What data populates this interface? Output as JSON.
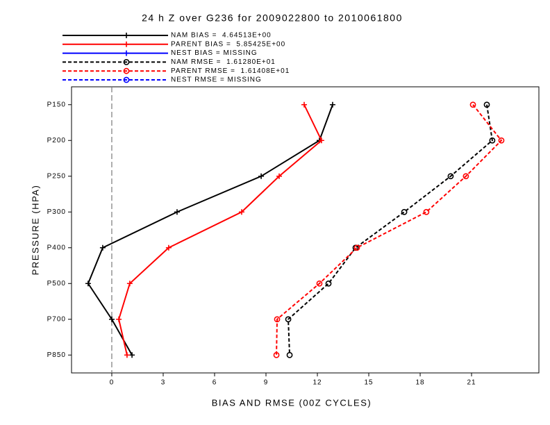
{
  "chart_data": {
    "type": "line",
    "title": "24 h Z over G236 for 2009022800 to 2010061800",
    "x_label": "BIAS AND RMSE (00Z CYCLES)",
    "y_label": "PRESSURE (HPA)",
    "categories": [
      "P150",
      "P200",
      "P250",
      "P300",
      "P400",
      "P500",
      "P700",
      "P850"
    ],
    "xlim": [
      -2.35,
      24.93
    ],
    "xticks": [
      0,
      3,
      6,
      9,
      12,
      15,
      18,
      21
    ],
    "zero_line": true,
    "series": [
      {
        "name": "NAM BIAS =  4.64513E+00",
        "color": "#000000",
        "dash": false,
        "marker": "plus",
        "values": [
          12.89,
          12.12,
          8.72,
          3.81,
          -0.53,
          -1.38,
          0,
          1.18
        ]
      },
      {
        "name": "PARENT BIAS =  5.85425E+00",
        "color": "#ff0000",
        "dash": false,
        "marker": "plus",
        "values": [
          11.23,
          12.24,
          9.77,
          7.58,
          3.32,
          1.05,
          0.41,
          0.89
        ]
      },
      {
        "name": "NEST BIAS = MISSING",
        "color": "#0000ff",
        "dash": false,
        "marker": "plus",
        "values": [
          null,
          null,
          null,
          null,
          null,
          null,
          null,
          null
        ]
      },
      {
        "name": "NAM RMSE =  1.61280E+01",
        "color": "#000000",
        "dash": true,
        "marker": "circle",
        "values": [
          21.89,
          22.21,
          19.78,
          17.07,
          14.23,
          12.65,
          10.3,
          10.38
        ]
      },
      {
        "name": "PARENT RMSE =  1.61408E+01",
        "color": "#ff0000",
        "dash": true,
        "marker": "circle",
        "values": [
          21.08,
          22.74,
          20.67,
          18.36,
          14.31,
          12.12,
          9.65,
          9.61
        ]
      },
      {
        "name": "NEST RMSE = MISSING",
        "color": "#0000ff",
        "dash": true,
        "marker": "circle",
        "values": [
          null,
          null,
          null,
          null,
          null,
          null,
          null,
          null
        ]
      }
    ]
  }
}
